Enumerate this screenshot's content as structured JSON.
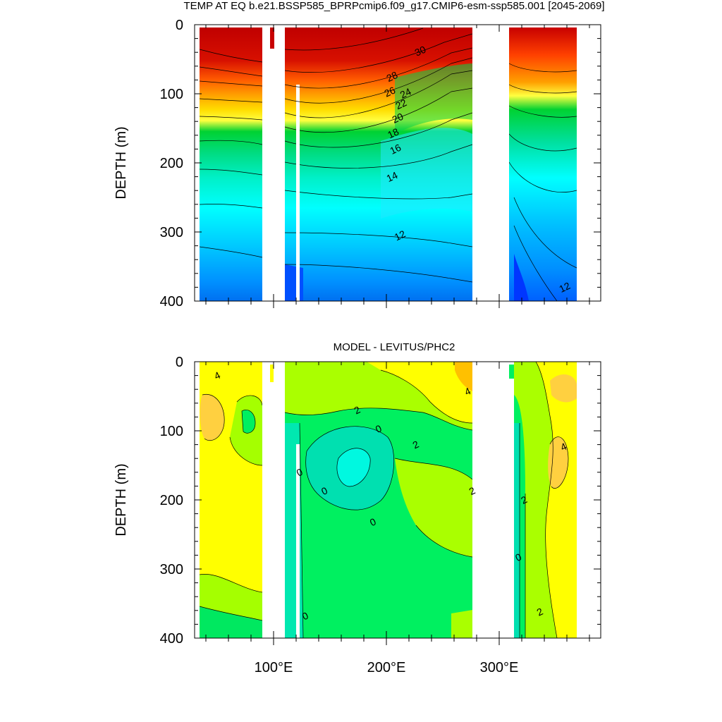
{
  "chart_data": [
    {
      "type": "heatmap",
      "subtype": "filled-contour",
      "title": "TEMP AT EQ b.e21.BSSP585_BPRPcmip6.f09_g17.CMIP6-esm-ssp585.001 [2045-2069]",
      "xlabel": "",
      "ylabel": "DEPTH (m)",
      "xlim": [
        30,
        390
      ],
      "ylim": [
        0,
        400
      ],
      "y_reversed": true,
      "y_ticks": [
        "0",
        "100",
        "200",
        "300",
        "400"
      ],
      "y_tick_values": [
        0,
        100,
        200,
        300,
        400
      ],
      "x_ticks": [
        "100°E",
        "200°E",
        "300°E"
      ],
      "x_tick_values": [
        100,
        200,
        300
      ],
      "land_masks_lon": [
        [
          98,
          118
        ],
        [
          278,
          315
        ]
      ],
      "ocean_lon_range": [
        45,
        370
      ],
      "contour_labels": [
        {
          "text": "30",
          "lon": 230,
          "depth": 38
        },
        {
          "text": "28",
          "lon": 205,
          "depth": 75
        },
        {
          "text": "26",
          "lon": 203,
          "depth": 97
        },
        {
          "text": "24",
          "lon": 217,
          "depth": 99
        },
        {
          "text": "22",
          "lon": 213,
          "depth": 115
        },
        {
          "text": "20",
          "lon": 210,
          "depth": 135
        },
        {
          "text": "18",
          "lon": 206,
          "depth": 157
        },
        {
          "text": "16",
          "lon": 208,
          "depth": 180
        },
        {
          "text": "14",
          "lon": 205,
          "depth": 220
        },
        {
          "text": "12",
          "lon": 212,
          "depth": 305
        },
        {
          "text": "12",
          "lon": 358,
          "depth": 380
        }
      ],
      "colors": [
        "#0036ff",
        "#0073ff",
        "#00a8ff",
        "#2cd5ff",
        "#00ffff",
        "#00f5c8",
        "#00e38c",
        "#00d73c",
        "#7fd000",
        "#ffff00",
        "#ffd000",
        "#ffa400",
        "#ff7a00",
        "#ff4e00",
        "#ff0000",
        "#c80000"
      ]
    },
    {
      "type": "heatmap",
      "subtype": "filled-contour",
      "title": "MODEL - LEVITUS/PHC2",
      "xlabel": "",
      "ylabel": "DEPTH (m)",
      "xlim": [
        30,
        390
      ],
      "ylim": [
        0,
        400
      ],
      "y_reversed": true,
      "y_ticks": [
        "0",
        "100",
        "200",
        "300",
        "400"
      ],
      "y_tick_values": [
        0,
        100,
        200,
        300,
        400
      ],
      "x_ticks": [
        "100°E",
        "200°E",
        "300°E"
      ],
      "x_tick_values": [
        100,
        200,
        300
      ],
      "land_masks_lon": [
        [
          98,
          118
        ],
        [
          278,
          315
        ]
      ],
      "ocean_lon_range": [
        45,
        370
      ],
      "contour_labels": [
        {
          "text": "4",
          "lon": 50,
          "depth": 20
        },
        {
          "text": "2",
          "lon": 174,
          "depth": 70
        },
        {
          "text": "0",
          "lon": 193,
          "depth": 97
        },
        {
          "text": "2",
          "lon": 226,
          "depth": 120
        },
        {
          "text": "4",
          "lon": 272,
          "depth": 43
        },
        {
          "text": "0",
          "lon": 123,
          "depth": 160
        },
        {
          "text": "0",
          "lon": 145,
          "depth": 187
        },
        {
          "text": "0",
          "lon": 188,
          "depth": 232
        },
        {
          "text": "2",
          "lon": 276,
          "depth": 187
        },
        {
          "text": "2",
          "lon": 322,
          "depth": 200
        },
        {
          "text": "4",
          "lon": 357,
          "depth": 123
        },
        {
          "text": "0",
          "lon": 317,
          "depth": 283
        },
        {
          "text": "0",
          "lon": 128,
          "depth": 368
        },
        {
          "text": "2",
          "lon": 336,
          "depth": 362
        }
      ],
      "colors": [
        "#00d7a0",
        "#00e88a",
        "#00f500",
        "#aaff00",
        "#e5ff38",
        "#ffff00",
        "#ffe040",
        "#ffc000",
        "#ffa000"
      ]
    }
  ]
}
